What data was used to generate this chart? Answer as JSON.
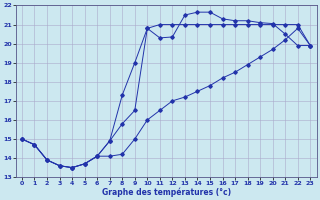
{
  "xlabel": "Graphe des températures (°c)",
  "bg_color": "#cce8f0",
  "grid_color": "#aaaacc",
  "line_color": "#2233aa",
  "xlim": [
    -0.5,
    23.5
  ],
  "ylim": [
    13,
    22
  ],
  "xticks": [
    0,
    1,
    2,
    3,
    4,
    5,
    6,
    7,
    8,
    9,
    10,
    11,
    12,
    13,
    14,
    15,
    16,
    17,
    18,
    19,
    20,
    21,
    22,
    23
  ],
  "yticks": [
    13,
    14,
    15,
    16,
    17,
    18,
    19,
    20,
    21,
    22
  ],
  "line1_x": [
    0,
    1,
    2,
    3,
    4,
    5,
    6,
    7,
    8,
    9,
    10,
    11,
    12,
    13,
    14,
    15,
    16,
    17,
    18,
    19,
    20,
    21,
    22,
    23
  ],
  "line1_y": [
    15.0,
    14.7,
    13.9,
    13.6,
    13.5,
    13.7,
    14.1,
    14.9,
    15.8,
    16.5,
    20.8,
    20.3,
    20.35,
    21.5,
    21.65,
    21.65,
    21.3,
    21.2,
    21.2,
    21.1,
    21.05,
    20.5,
    19.9,
    19.9
  ],
  "line2_x": [
    0,
    1,
    2,
    3,
    4,
    5,
    6,
    7,
    8,
    9,
    10,
    11,
    12,
    13,
    14,
    15,
    16,
    17,
    18,
    19,
    20,
    21,
    22,
    23
  ],
  "line2_y": [
    15.0,
    14.7,
    13.9,
    13.6,
    13.5,
    13.7,
    14.1,
    14.9,
    17.3,
    19.0,
    20.8,
    21.0,
    21.0,
    21.0,
    21.0,
    21.0,
    21.0,
    21.0,
    21.0,
    21.0,
    21.0,
    21.0,
    21.0,
    19.9
  ],
  "line3_x": [
    0,
    1,
    2,
    3,
    4,
    5,
    6,
    7,
    8,
    9,
    10,
    11,
    12,
    13,
    14,
    15,
    16,
    17,
    18,
    19,
    20,
    21,
    22,
    23
  ],
  "line3_y": [
    15.0,
    14.7,
    13.9,
    13.6,
    13.5,
    13.7,
    14.1,
    14.1,
    14.2,
    15.0,
    16.0,
    16.5,
    17.0,
    17.2,
    17.5,
    17.8,
    18.2,
    18.5,
    18.9,
    19.3,
    19.7,
    20.2,
    20.8,
    19.9
  ]
}
